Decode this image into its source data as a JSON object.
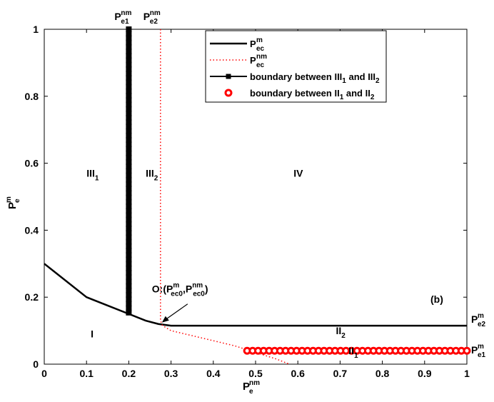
{
  "chart_data": {
    "type": "line",
    "panel_label": "(b)",
    "xlabel": {
      "base": "P",
      "sup": "nm",
      "sub": "e"
    },
    "ylabel": {
      "base": "P",
      "sup": "m",
      "sub": "e"
    },
    "xlim": [
      0,
      1
    ],
    "ylim": [
      0,
      1
    ],
    "xticks": [
      "0",
      "0.1",
      "0.2",
      "0.3",
      "0.4",
      "0.5",
      "0.6",
      "0.7",
      "0.8",
      "0.9",
      "1"
    ],
    "yticks": [
      "0",
      "0.2",
      "0.4",
      "0.6",
      "0.8",
      "1"
    ],
    "grid": false,
    "legend_position": "top-right",
    "series": [
      {
        "name": {
          "base": "P",
          "sup": "m",
          "sub": "ec"
        },
        "style": "solid",
        "color": "#000000",
        "x": [
          0,
          0.1,
          0.2,
          0.24,
          0.27,
          0.3,
          0.5,
          0.7,
          1.0
        ],
        "y": [
          0.3,
          0.2,
          0.15,
          0.13,
          0.12,
          0.115,
          0.115,
          0.115,
          0.115
        ]
      },
      {
        "name": {
          "base": "P",
          "sup": "nm",
          "sub": "ec"
        },
        "style": "dotted",
        "color": "#ff0000",
        "x": [
          0.275,
          0.275,
          0.275,
          0.28,
          0.3,
          0.35,
          0.4,
          0.45,
          0.5,
          0.55,
          0.58
        ],
        "y": [
          1.0,
          0.5,
          0.13,
          0.115,
          0.1,
          0.085,
          0.07,
          0.055,
          0.035,
          0.015,
          0.0
        ]
      },
      {
        "name": {
          "parts": [
            "boundary between III",
            "1",
            " and III",
            "2"
          ]
        },
        "style": "solid-square-markers",
        "color": "#000000",
        "x": [
          0.2,
          0.2
        ],
        "y": [
          0.15,
          1.0
        ]
      },
      {
        "name": {
          "parts": [
            "boundary between II",
            "1",
            " and II",
            "2"
          ]
        },
        "style": "circle-markers",
        "color": "#ff0000",
        "x": [
          0.48,
          1.0
        ],
        "y": [
          0.04,
          0.04
        ]
      }
    ],
    "annotations": {
      "top_left": {
        "base": "P",
        "sup": "nm",
        "sub": "e1",
        "x": 0.2
      },
      "top_right": {
        "base": "P",
        "sup": "nm",
        "sub": "e2",
        "x": 0.275
      },
      "right_upper": {
        "base": "P",
        "sup": "m",
        "sub": "e2",
        "y": 0.115
      },
      "right_lower": {
        "base": "P",
        "sup": "m",
        "sub": "e1",
        "y": 0.04
      },
      "point_o": {
        "prefix": "O:(P",
        "sup1": "m",
        "sub1": "ec0",
        "mid": ",P",
        "sup2": "nm",
        "sub2": "ec0",
        "suffix": ")",
        "x": 0.275,
        "y": 0.12
      }
    },
    "regions": [
      {
        "label": "III",
        "sub": "1",
        "x": 0.1,
        "y": 0.56
      },
      {
        "label": "III",
        "sub": "2",
        "x": 0.24,
        "y": 0.56
      },
      {
        "label": "IV",
        "sub": "",
        "x": 0.59,
        "y": 0.56
      },
      {
        "label": "I",
        "sub": "",
        "x": 0.11,
        "y": 0.08
      },
      {
        "label": "II",
        "sub": "2",
        "x": 0.69,
        "y": 0.09
      },
      {
        "label": "II",
        "sub": "1",
        "x": 0.72,
        "y": 0.03
      }
    ]
  }
}
